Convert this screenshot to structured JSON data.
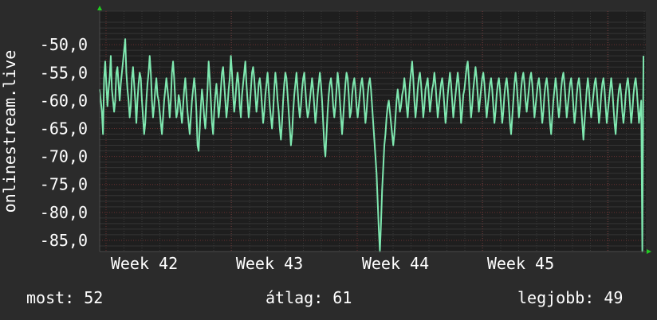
{
  "chart_data": {
    "type": "line",
    "ylabel": "onlinestream.live",
    "ylim": [
      -87,
      -44
    ],
    "x_ticks": [
      "Week 42",
      "Week 43",
      "Week 44",
      "Week 45"
    ],
    "yticks": [
      -50,
      -55,
      -60,
      -65,
      -70,
      -75,
      -80,
      -85
    ],
    "ytick_labels": [
      "-50,0",
      "-55,0",
      "-60,0",
      "-65,0",
      "-70,0",
      "-75,0",
      "-80,0",
      "-85,0"
    ],
    "series": [
      {
        "color": "#7fe8b0",
        "y": [
          -58,
          -60,
          -62,
          -66,
          -56,
          -53,
          -57,
          -61,
          -58,
          -56,
          -52,
          -58,
          -60,
          -62,
          -60,
          -55,
          -54,
          -57,
          -60,
          -57,
          -55,
          -53,
          -51,
          -49,
          -55,
          -58,
          -60,
          -63,
          -61,
          -56,
          -54,
          -57,
          -60,
          -64,
          -60,
          -57,
          -55,
          -56,
          -60,
          -63,
          -66,
          -64,
          -60,
          -57,
          -55,
          -52,
          -55,
          -60,
          -63,
          -61,
          -58,
          -56,
          -59,
          -60,
          -62,
          -64,
          -66,
          -63,
          -60,
          -58,
          -56,
          -58,
          -60,
          -63,
          -60,
          -55,
          -53,
          -56,
          -60,
          -63,
          -62,
          -59,
          -60,
          -62,
          -64,
          -61,
          -58,
          -56,
          -59,
          -62,
          -64,
          -66,
          -63,
          -60,
          -58,
          -56,
          -58,
          -62,
          -68,
          -69,
          -65,
          -61,
          -58,
          -60,
          -63,
          -65,
          -62,
          -58,
          -53,
          -56,
          -60,
          -64,
          -66,
          -62,
          -59,
          -57,
          -60,
          -63,
          -61,
          -58,
          -55,
          -54,
          -57,
          -60,
          -63,
          -61,
          -58,
          -56,
          -52,
          -55,
          -59,
          -62,
          -60,
          -57,
          -55,
          -57,
          -61,
          -63,
          -59,
          -57,
          -55,
          -53,
          -57,
          -60,
          -63,
          -61,
          -58,
          -55,
          -54,
          -56,
          -59,
          -62,
          -60,
          -57,
          -56,
          -58,
          -61,
          -64,
          -62,
          -59,
          -57,
          -55,
          -58,
          -61,
          -63,
          -65,
          -62,
          -58,
          -55,
          -57,
          -60,
          -62,
          -65,
          -67,
          -64,
          -60,
          -57,
          -55,
          -56,
          -59,
          -62,
          -65,
          -68,
          -66,
          -62,
          -59,
          -57,
          -55,
          -58,
          -61,
          -63,
          -61,
          -58,
          -56,
          -55,
          -58,
          -61,
          -63,
          -62,
          -60,
          -58,
          -56,
          -58,
          -61,
          -64,
          -62,
          -59,
          -57,
          -55,
          -57,
          -60,
          -64,
          -68,
          -70,
          -66,
          -62,
          -59,
          -57,
          -56,
          -58,
          -61,
          -63,
          -61,
          -58,
          -55,
          -57,
          -60,
          -63,
          -66,
          -63,
          -60,
          -57,
          -55,
          -56,
          -59,
          -63,
          -62,
          -59,
          -57,
          -56,
          -58,
          -61,
          -63,
          -61,
          -59,
          -57,
          -56,
          -58,
          -61,
          -64,
          -62,
          -59,
          -57,
          -56,
          -58,
          -61,
          -64,
          -67,
          -70,
          -73,
          -78,
          -83,
          -87,
          -82,
          -76,
          -72,
          -68,
          -66,
          -63,
          -61,
          -60,
          -62,
          -64,
          -66,
          -68,
          -66,
          -63,
          -60,
          -58,
          -60,
          -62,
          -61,
          -59,
          -58,
          -56,
          -58,
          -61,
          -63,
          -60,
          -57,
          -55,
          -53,
          -56,
          -60,
          -63,
          -61,
          -58,
          -56,
          -55,
          -57,
          -60,
          -63,
          -61,
          -58,
          -57,
          -56,
          -59,
          -62,
          -60,
          -58,
          -57,
          -55,
          -57,
          -60,
          -63,
          -61,
          -59,
          -57,
          -56,
          -58,
          -61,
          -64,
          -62,
          -59,
          -57,
          -55,
          -57,
          -60,
          -63,
          -61,
          -59,
          -57,
          -55,
          -57,
          -60,
          -64,
          -62,
          -59,
          -58,
          -56,
          -54,
          -53,
          -56,
          -60,
          -63,
          -61,
          -58,
          -56,
          -54,
          -56,
          -59,
          -62,
          -60,
          -58,
          -56,
          -55,
          -57,
          -60,
          -63,
          -61,
          -59,
          -57,
          -56,
          -58,
          -61,
          -64,
          -62,
          -59,
          -57,
          -56,
          -58,
          -61,
          -64,
          -62,
          -59,
          -57,
          -56,
          -58,
          -61,
          -64,
          -66,
          -63,
          -60,
          -57,
          -55,
          -57,
          -60,
          -63,
          -61,
          -58,
          -56,
          -55,
          -57,
          -60,
          -62,
          -60,
          -58,
          -56,
          -55,
          -57,
          -60,
          -63,
          -61,
          -59,
          -57,
          -56,
          -58,
          -61,
          -64,
          -62,
          -59,
          -57,
          -56,
          -58,
          -61,
          -64,
          -66,
          -63,
          -60,
          -58,
          -56,
          -58,
          -61,
          -63,
          -61,
          -58,
          -56,
          -55,
          -57,
          -60,
          -63,
          -61,
          -59,
          -57,
          -56,
          -58,
          -61,
          -64,
          -62,
          -59,
          -57,
          -56,
          -58,
          -61,
          -64,
          -67,
          -64,
          -61,
          -58,
          -56,
          -58,
          -61,
          -63,
          -61,
          -59,
          -57,
          -56,
          -58,
          -61,
          -64,
          -62,
          -59,
          -57,
          -56,
          -58,
          -61,
          -64,
          -62,
          -60,
          -58,
          -56,
          -58,
          -61,
          -64,
          -66,
          -63,
          -60,
          -58,
          -57,
          -59,
          -62,
          -64,
          -62,
          -59,
          -57,
          -56,
          -58,
          -61,
          -64,
          -62,
          -59,
          -57,
          -56,
          -58,
          -61,
          -64,
          -62,
          -60,
          -87,
          -52
        ]
      }
    ]
  },
  "footer": {
    "current": "most: 52",
    "average": "átlag: 61",
    "best": "legjobb: 49"
  }
}
